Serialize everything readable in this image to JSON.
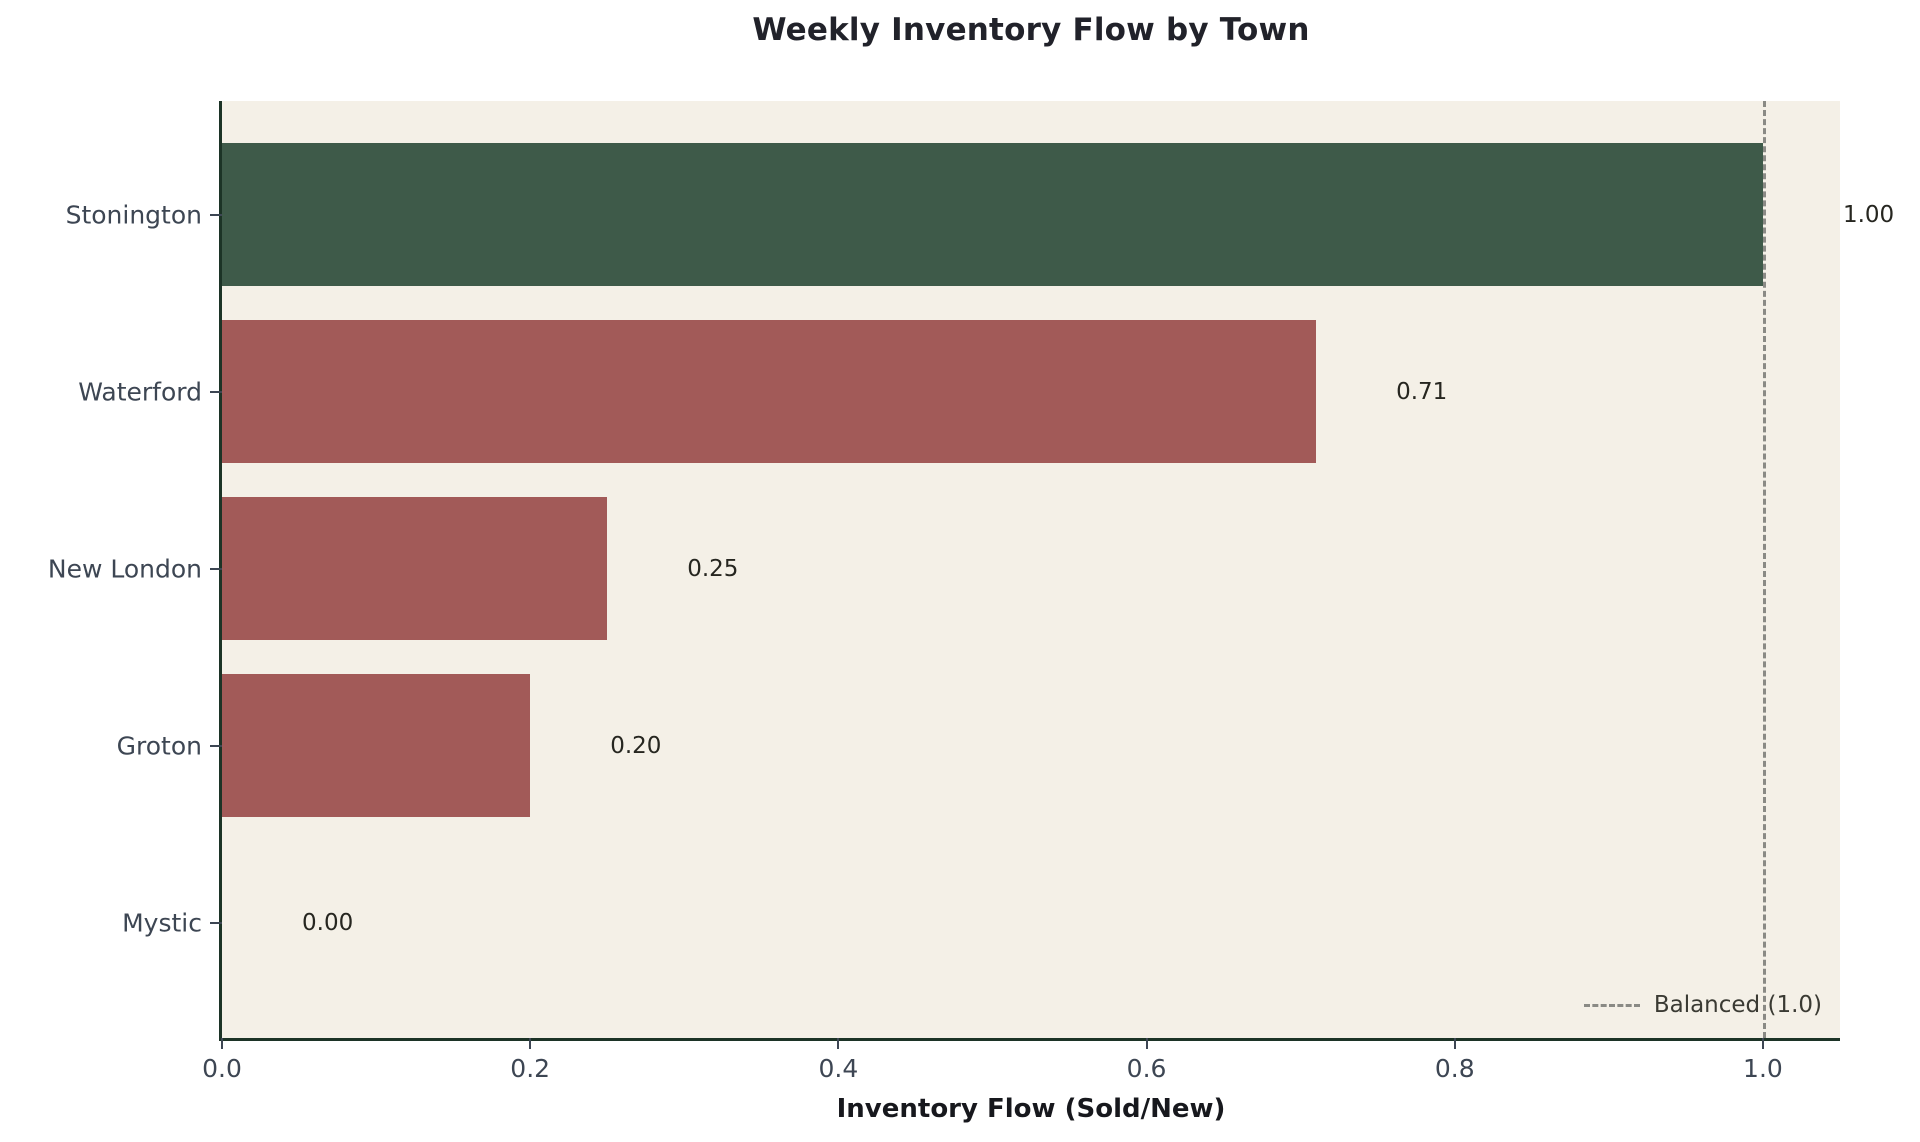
{
  "chart_data": {
    "type": "bar",
    "orientation": "horizontal",
    "title": "Weekly Inventory Flow by Town",
    "xlabel": "Inventory Flow (Sold/New)",
    "ylabel": "",
    "categories": [
      "Stonington",
      "Waterford",
      "New London",
      "Groton",
      "Mystic"
    ],
    "values": [
      1.0,
      0.71,
      0.25,
      0.2,
      0.0
    ],
    "value_labels": [
      "1.00",
      "0.71",
      "0.25",
      "0.20",
      "0.00"
    ],
    "bar_colors": [
      "#3e5a49",
      "#a25a58",
      "#a25a58",
      "#a25a58",
      "#a25a58"
    ],
    "xlim": [
      0,
      1.05
    ],
    "xticks": [
      0.0,
      0.2,
      0.4,
      0.6,
      0.8,
      1.0
    ],
    "xtick_labels": [
      "0.0",
      "0.2",
      "0.4",
      "0.6",
      "0.8",
      "1.0"
    ],
    "grid": false,
    "reference_line": {
      "x": 1.0,
      "style": "dashed",
      "color": "#8a8a85",
      "label": "Balanced (1.0)"
    },
    "legend_position": "lower right",
    "legend_entries": [
      "Balanced (1.0)"
    ],
    "plot_background": "#f4f0e7",
    "figure_background": "#ffffff"
  }
}
